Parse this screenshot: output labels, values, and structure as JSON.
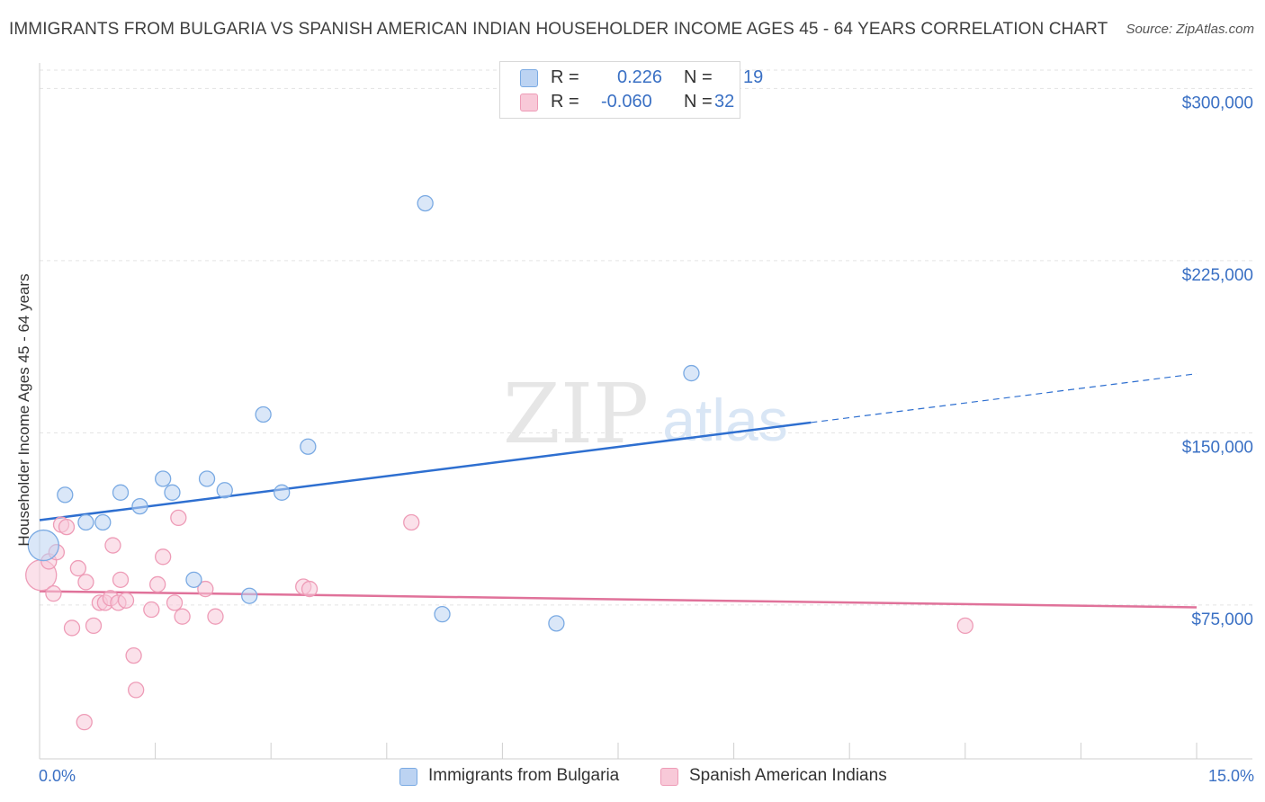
{
  "title": "IMMIGRANTS FROM BULGARIA VS SPANISH AMERICAN INDIAN HOUSEHOLDER INCOME AGES 45 - 64 YEARS CORRELATION CHART",
  "source": "Source: ZipAtlas.com",
  "watermark": {
    "zip": "ZIP",
    "atlas": "atlas"
  },
  "legend": {
    "r_label": "R =",
    "n_label": "N =",
    "series1": {
      "r": "0.226",
      "n": "19"
    },
    "series2": {
      "r": "-0.060",
      "n": "32"
    }
  },
  "chart_data": {
    "type": "scatter",
    "title": "IMMIGRANTS FROM BULGARIA VS SPANISH AMERICAN INDIAN HOUSEHOLDER INCOME AGES 45 - 64 YEARS CORRELATION CHART",
    "xlabel": "",
    "ylabel": "Householder Income Ages 45 - 64 years",
    "xlim": [
      0,
      15
    ],
    "ylim": [
      8000,
      308000
    ],
    "x_tick_labels": [
      "0.0%",
      "15.0%"
    ],
    "y_ticks": [
      75000,
      150000,
      225000,
      300000
    ],
    "y_tick_labels": [
      "$75,000",
      "$150,000",
      "$225,000",
      "$300,000"
    ],
    "grid": true,
    "colors": {
      "series1": "#7aaae3",
      "series1_fill": "#bcd3f2",
      "series1_line": "#2e6fd0",
      "series2": "#ee9cb7",
      "series2_fill": "#f8c9d8",
      "series2_line": "#e0729a"
    },
    "series": [
      {
        "name": "Immigrants from Bulgaria",
        "trend": {
          "x0": 0.0,
          "y0": 112000,
          "x1": 10.0,
          "y1": 154500,
          "dash_to_x": 15.0
        },
        "points": [
          {
            "x": 0.05,
            "y": 101000,
            "big": true
          },
          {
            "x": 0.33,
            "y": 123000
          },
          {
            "x": 0.6,
            "y": 111000
          },
          {
            "x": 0.82,
            "y": 111000
          },
          {
            "x": 1.05,
            "y": 124000
          },
          {
            "x": 1.3,
            "y": 118000
          },
          {
            "x": 1.6,
            "y": 130000
          },
          {
            "x": 1.72,
            "y": 124000
          },
          {
            "x": 2.0,
            "y": 86000
          },
          {
            "x": 2.17,
            "y": 130000
          },
          {
            "x": 2.4,
            "y": 125000
          },
          {
            "x": 2.72,
            "y": 79000
          },
          {
            "x": 2.9,
            "y": 158000
          },
          {
            "x": 3.14,
            "y": 124000
          },
          {
            "x": 3.48,
            "y": 144000
          },
          {
            "x": 5.0,
            "y": 250000
          },
          {
            "x": 5.22,
            "y": 71000
          },
          {
            "x": 6.7,
            "y": 67000
          },
          {
            "x": 8.45,
            "y": 176000
          }
        ]
      },
      {
        "name": "Spanish American Indians",
        "trend": {
          "x0": 0.0,
          "y0": 81000,
          "x1": 15.0,
          "y1": 74000
        },
        "points": [
          {
            "x": 0.02,
            "y": 88000,
            "big": true
          },
          {
            "x": 0.12,
            "y": 94000
          },
          {
            "x": 0.18,
            "y": 80000
          },
          {
            "x": 0.22,
            "y": 98000
          },
          {
            "x": 0.28,
            "y": 110000
          },
          {
            "x": 0.35,
            "y": 109000
          },
          {
            "x": 0.42,
            "y": 65000
          },
          {
            "x": 0.5,
            "y": 91000
          },
          {
            "x": 0.58,
            "y": 24000
          },
          {
            "x": 0.6,
            "y": 85000
          },
          {
            "x": 0.7,
            "y": 66000
          },
          {
            "x": 0.78,
            "y": 76000
          },
          {
            "x": 0.85,
            "y": 76000
          },
          {
            "x": 0.92,
            "y": 78000
          },
          {
            "x": 0.95,
            "y": 101000
          },
          {
            "x": 1.02,
            "y": 76000
          },
          {
            "x": 1.05,
            "y": 86000
          },
          {
            "x": 1.12,
            "y": 77000
          },
          {
            "x": 1.22,
            "y": 53000
          },
          {
            "x": 1.25,
            "y": 38000
          },
          {
            "x": 1.45,
            "y": 73000
          },
          {
            "x": 1.53,
            "y": 84000
          },
          {
            "x": 1.6,
            "y": 96000
          },
          {
            "x": 1.75,
            "y": 76000
          },
          {
            "x": 1.8,
            "y": 113000
          },
          {
            "x": 1.85,
            "y": 70000
          },
          {
            "x": 2.15,
            "y": 82000
          },
          {
            "x": 2.28,
            "y": 70000
          },
          {
            "x": 3.42,
            "y": 83000
          },
          {
            "x": 3.5,
            "y": 82000
          },
          {
            "x": 4.82,
            "y": 111000
          },
          {
            "x": 12.0,
            "y": 66000
          }
        ]
      }
    ]
  }
}
